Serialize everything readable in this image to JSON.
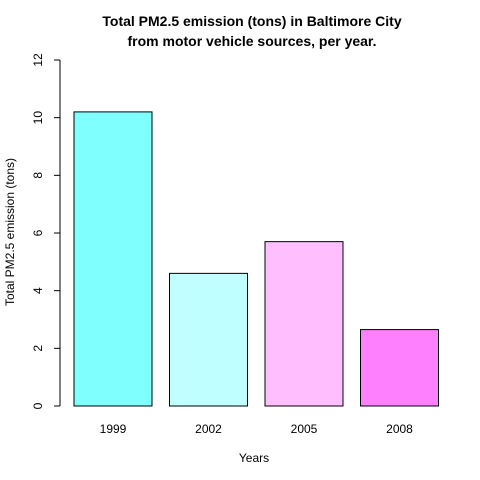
{
  "chart_data": {
    "type": "bar",
    "title_line1": "Total PM2.5 emission (tons) in Baltimore City",
    "title_line2": "from motor vehicle sources, per year.",
    "xlabel": "Years",
    "ylabel": "Total PM2.5 emission (tons)",
    "categories": [
      "1999",
      "2002",
      "2005",
      "2008"
    ],
    "values": [
      10.2,
      4.6,
      5.7,
      2.65
    ],
    "colors": [
      "#80FFFF",
      "#BFFFFF",
      "#FFBFFF",
      "#FF80FF"
    ],
    "ylim": [
      0,
      12
    ],
    "yticks": [
      "0",
      "2",
      "4",
      "6",
      "8",
      "10",
      "12"
    ],
    "grid": false
  }
}
